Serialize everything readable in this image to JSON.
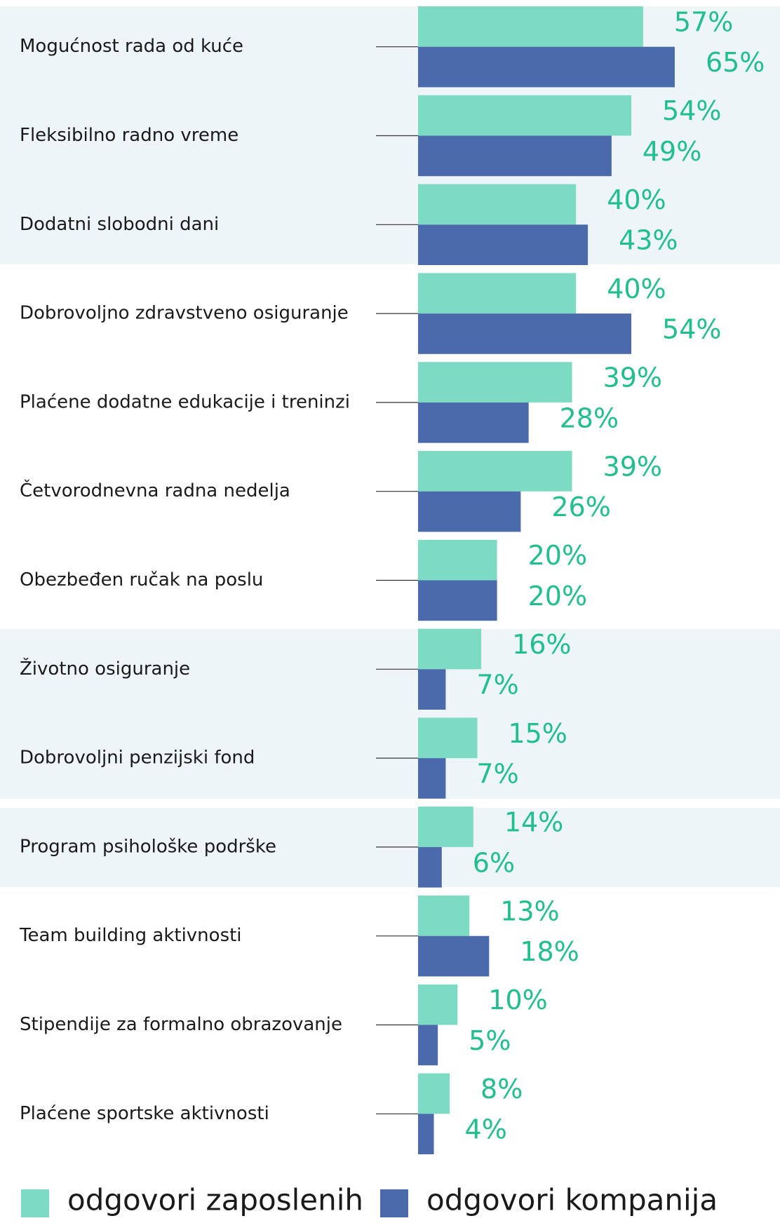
{
  "chart_data": {
    "type": "bar",
    "orientation": "horizontal",
    "categories": [
      "Mogućnost rada od kuće",
      "Fleksibilno radno vreme",
      "Dodatni slobodni dani",
      "Dobrovoljno zdravstveno osiguranje",
      "Plaćene dodatne edukacije i treninzi",
      "Četvorodnevna radna nedelja",
      "Obezbeđen ručak na poslu",
      "Životno osiguranje",
      "Dobrovoljni penzijski fond",
      "Program psihološke podrške",
      "Team building aktivnosti",
      "Stipendije za formalno obrazovanje",
      "Plaćene sportske aktivnosti"
    ],
    "series": [
      {
        "name": "odgovori zaposlenih",
        "color": "#7ddbc3",
        "values": [
          57,
          54,
          40,
          40,
          39,
          39,
          20,
          16,
          15,
          14,
          13,
          10,
          8
        ],
        "value_labels": [
          "57%",
          "54%",
          "40%",
          "40%",
          "39%",
          "39%",
          "20%",
          "16%",
          "15%",
          "14%",
          "13%",
          "10%",
          "8%"
        ]
      },
      {
        "name": "odgovori kompanija",
        "color": "#4a6aab",
        "values": [
          65,
          49,
          43,
          54,
          28,
          26,
          20,
          7,
          7,
          6,
          18,
          5,
          4
        ],
        "value_labels": [
          "65%",
          "49%",
          "43%",
          "54%",
          "28%",
          "26%",
          "20%",
          "7%",
          "7%",
          "6%",
          "18%",
          "5%",
          "4%"
        ]
      }
    ],
    "value_label_color": "#22bf8e",
    "legend": "bottom"
  }
}
